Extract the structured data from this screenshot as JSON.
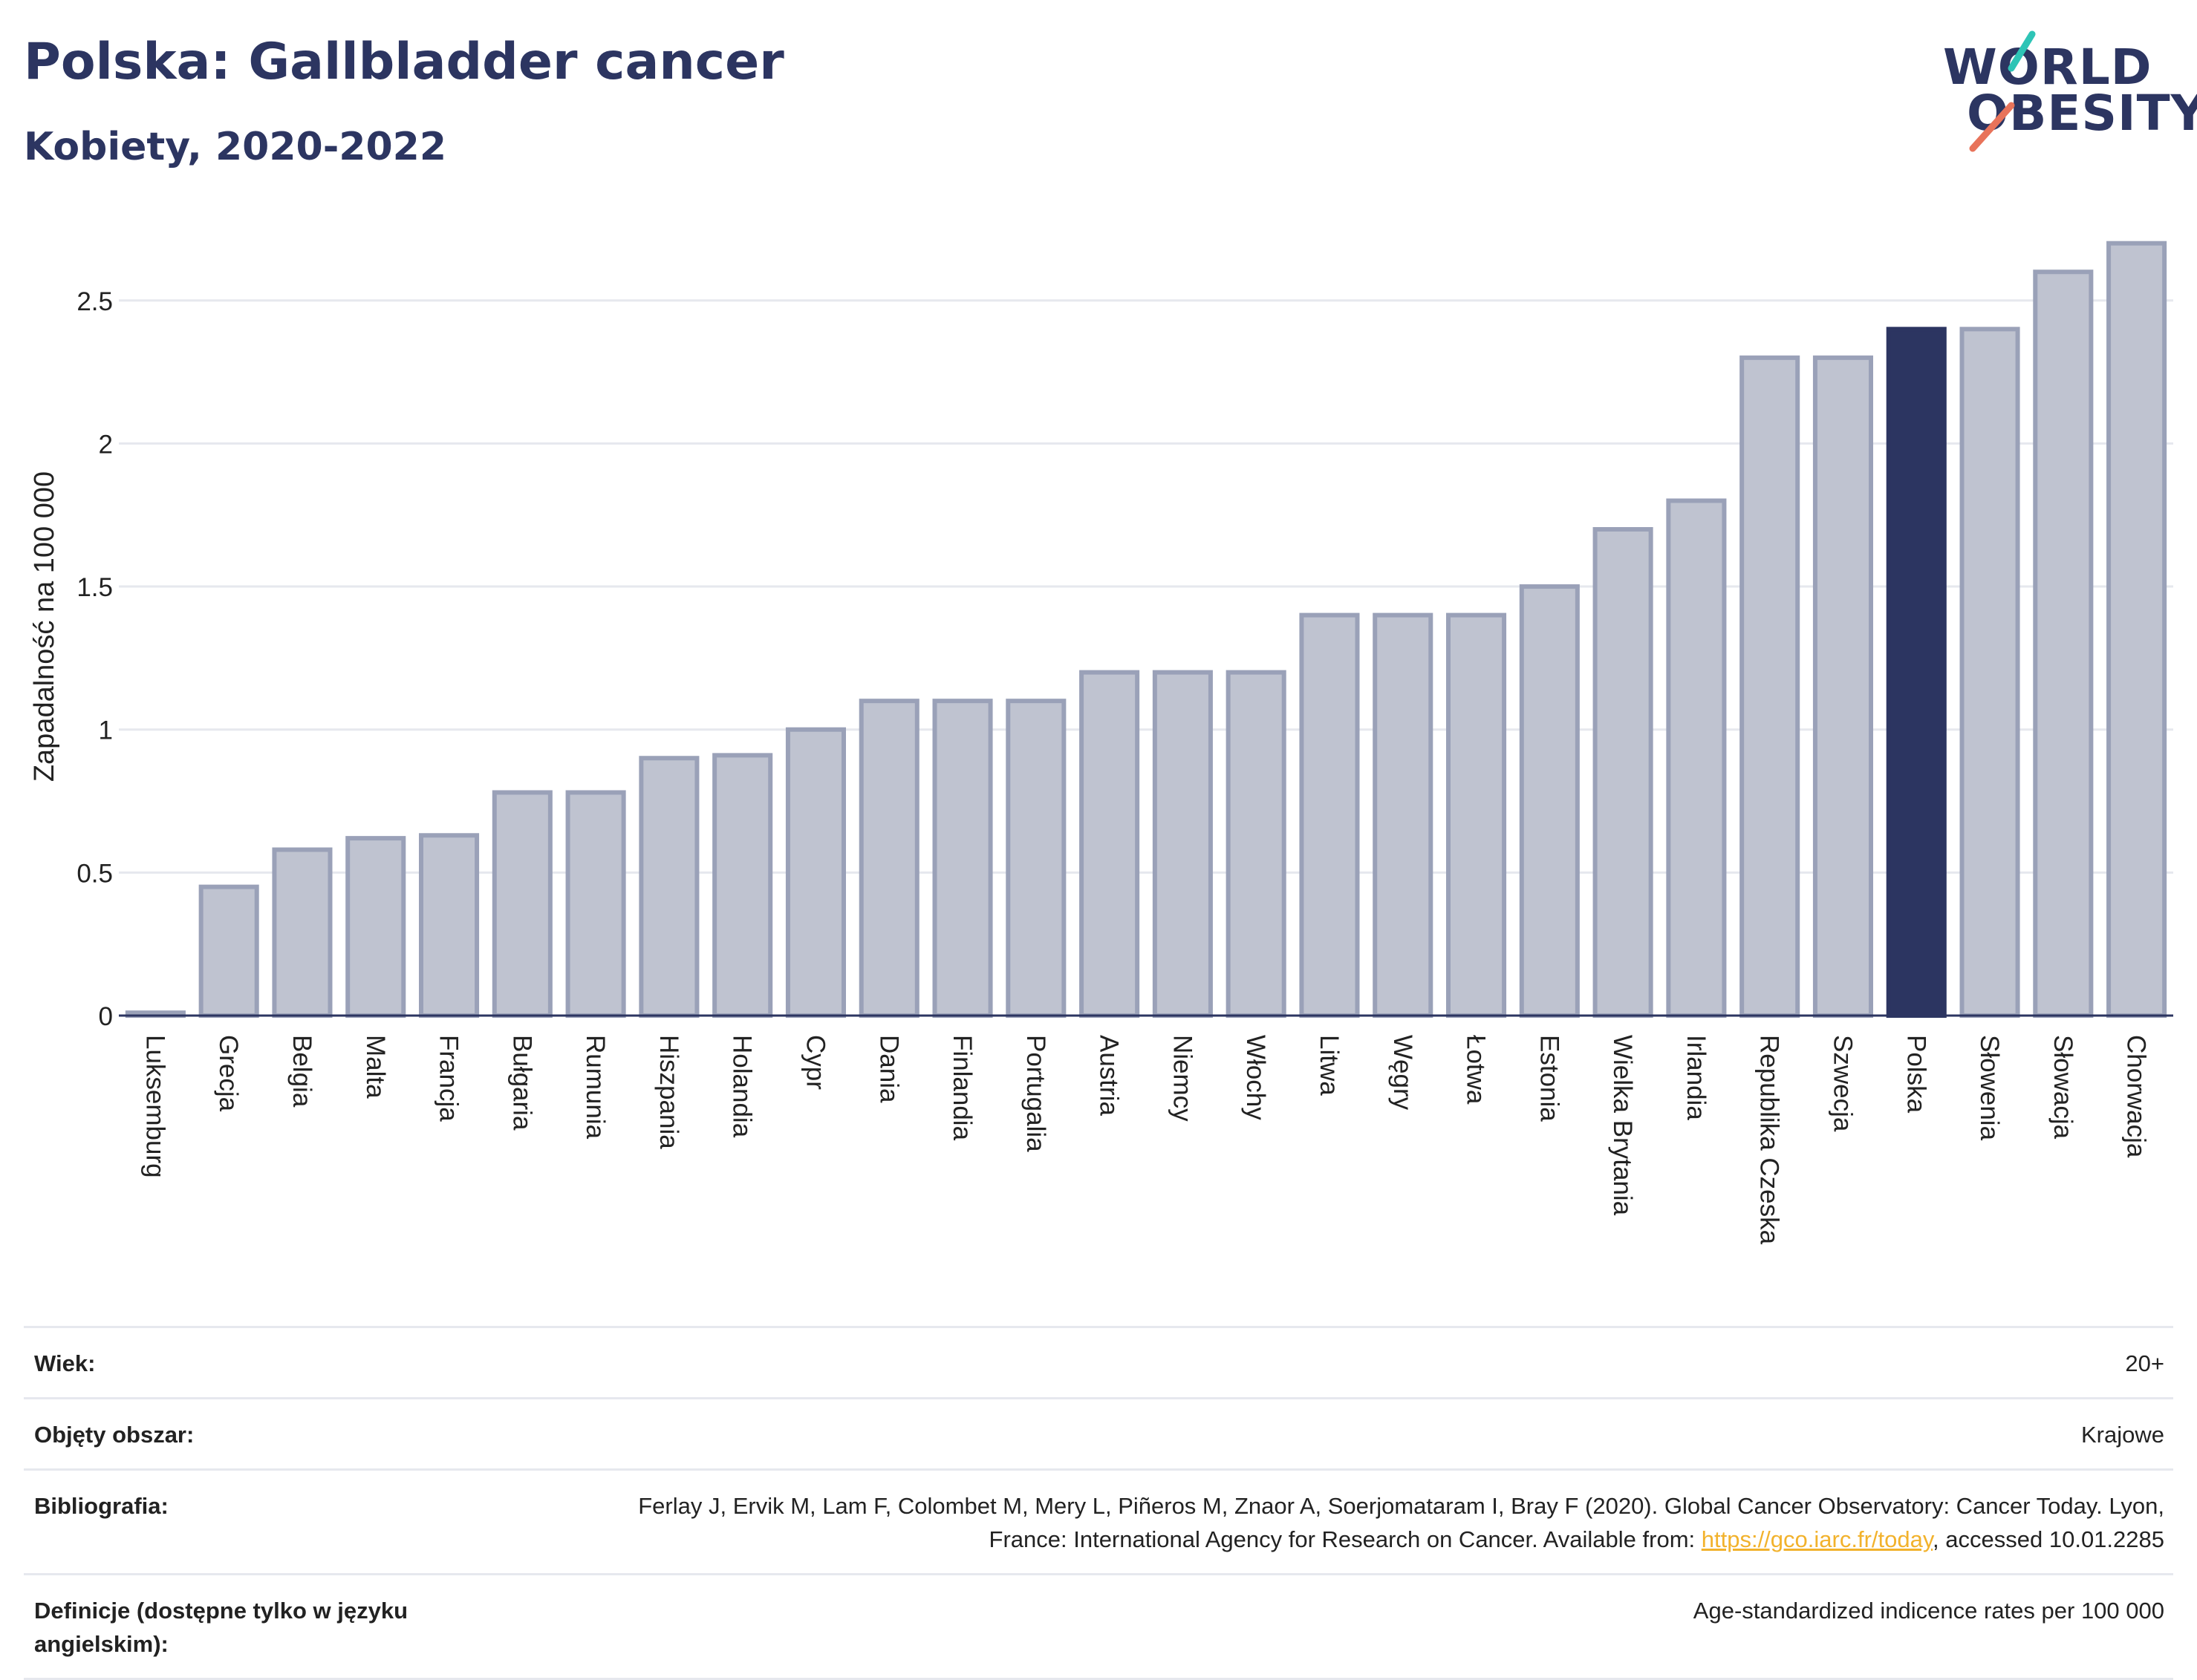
{
  "header": {
    "title": "Polska: Gallbladder cancer",
    "subtitle": "Kobiety, 2020-2022"
  },
  "logo": {
    "line1": "WORLD",
    "line2": "OBESITY",
    "accent_colors": [
      "#2ec4b6",
      "#e8735a"
    ]
  },
  "colors": {
    "bar_fill": "#bfc3d0",
    "bar_stroke": "#9aa1b8",
    "highlight": "#2c3561",
    "grid": "#e6e8ee",
    "axis": "#2c3561"
  },
  "chart_data": {
    "type": "bar",
    "title": "",
    "xlabel": "",
    "ylabel": "Zapadalność na 100 000",
    "ylim": [
      0,
      2.72
    ],
    "yticks": [
      0,
      0.5,
      1,
      1.5,
      2,
      2.5
    ],
    "ytick_labels": [
      "0",
      "0.5",
      "1",
      "1.5",
      "2",
      "2.5"
    ],
    "grid": true,
    "highlight": "Polska",
    "categories": [
      "Luksemburg",
      "Grecja",
      "Belgia",
      "Malta",
      "Francja",
      "Bułgaria",
      "Rumunia",
      "Hiszpania",
      "Holandia",
      "Cypr",
      "Dania",
      "Finlandia",
      "Portugalia",
      "Austria",
      "Niemcy",
      "Włochy",
      "Litwa",
      "Węgry",
      "Łotwa",
      "Estonia",
      "Wielka Brytania",
      "Irlandia",
      "Republika Czeska",
      "Szwecja",
      "Polska",
      "Słowenia",
      "Słowacja",
      "Chorwacja"
    ],
    "values": [
      0.01,
      0.45,
      0.58,
      0.62,
      0.63,
      0.78,
      0.78,
      0.9,
      0.91,
      1.0,
      1.1,
      1.1,
      1.1,
      1.2,
      1.2,
      1.2,
      1.4,
      1.4,
      1.4,
      1.5,
      1.7,
      1.8,
      2.3,
      2.3,
      2.4,
      2.4,
      2.6,
      2.7
    ]
  },
  "info": {
    "age_label": "Wiek:",
    "age_value": "20+",
    "area_label": "Objęty obszar:",
    "area_value": "Krajowe",
    "biblio_label": "Bibliografia:",
    "biblio_text_1": "Ferlay J, Ervik M, Lam F, Colombet M, Mery L, Piñeros M, Znaor A, Soerjomataram I, Bray F (2020). Global Cancer Observatory: Cancer Today. Lyon, France: International Agency for Research on Cancer. Available from: ",
    "biblio_link": "https://gco.iarc.fr/today",
    "biblio_text_2": ", accessed 10.01.2285",
    "def_label": "Definicje (dostępne tylko w języku angielskim):",
    "def_value": "Age-standardized indicence rates per 100 000"
  }
}
